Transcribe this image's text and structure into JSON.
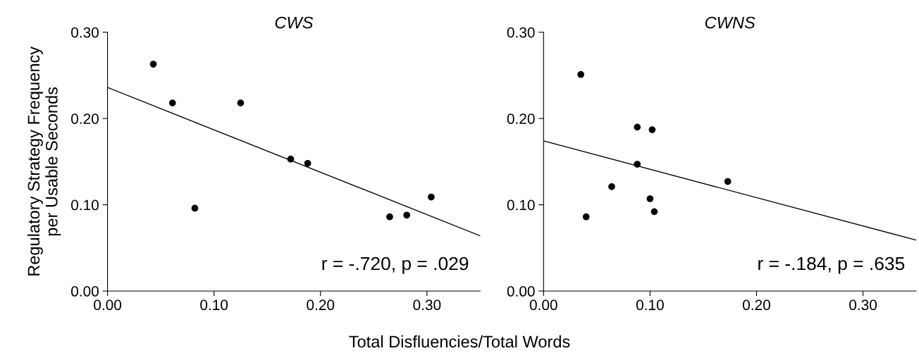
{
  "chart_data": [
    {
      "type": "scatter",
      "title": "CWS",
      "xlabel": "Total Disfluencies/Total Words",
      "ylabel": "Regulatory Strategy Frequency\nper Usable Seconds",
      "xlim": [
        0,
        0.35
      ],
      "ylim": [
        0,
        0.3
      ],
      "xticks": [
        {
          "value": 0,
          "label": "0.00"
        },
        {
          "value": 0.1,
          "label": "0.10"
        },
        {
          "value": 0.2,
          "label": "0.20"
        },
        {
          "value": 0.3,
          "label": "0.30"
        }
      ],
      "yticks": [
        {
          "value": 0,
          "label": "0.00"
        },
        {
          "value": 0.1,
          "label": "0.10"
        },
        {
          "value": 0.2,
          "label": "0.20"
        },
        {
          "value": 0.3,
          "label": "0.30"
        }
      ],
      "grid": false,
      "legend": false,
      "annotations": [
        "r = -.720, p = .029"
      ],
      "series": [
        {
          "marker": "circle",
          "color": "#000000",
          "x": [
            0.043,
            0.061,
            0.082,
            0.125,
            0.172,
            0.188,
            0.265,
            0.281,
            0.304
          ],
          "values": [
            0.263,
            0.218,
            0.096,
            0.218,
            0.153,
            0.148,
            0.086,
            0.088,
            0.109
          ]
        },
        {
          "type": "line",
          "color": "#000000",
          "x": [
            0,
            0.35
          ],
          "values": [
            0.236,
            0.064
          ]
        }
      ]
    },
    {
      "type": "scatter",
      "title": "CWNS",
      "xlim": [
        0,
        0.35
      ],
      "ylim": [
        0,
        0.3
      ],
      "xticks": [
        {
          "value": 0,
          "label": "0.00"
        },
        {
          "value": 0.1,
          "label": "0.10"
        },
        {
          "value": 0.2,
          "label": "0.20"
        },
        {
          "value": 0.3,
          "label": "0.30"
        }
      ],
      "yticks": [
        {
          "value": 0,
          "label": "0.00"
        },
        {
          "value": 0.1,
          "label": "0.10"
        },
        {
          "value": 0.2,
          "label": "0.20"
        },
        {
          "value": 0.3,
          "label": "0.30"
        }
      ],
      "grid": false,
      "legend": false,
      "annotations": [
        "r = -.184, p = .635"
      ],
      "series": [
        {
          "marker": "circle",
          "color": "#000000",
          "x": [
            0.035,
            0.088,
            0.102,
            0.088,
            0.064,
            0.1,
            0.104,
            0.04,
            0.173
          ],
          "values": [
            0.251,
            0.19,
            0.187,
            0.147,
            0.121,
            0.107,
            0.092,
            0.086,
            0.127
          ]
        },
        {
          "type": "line",
          "color": "#000000",
          "x": [
            0,
            0.35
          ],
          "values": [
            0.174,
            0.059
          ]
        }
      ]
    }
  ]
}
